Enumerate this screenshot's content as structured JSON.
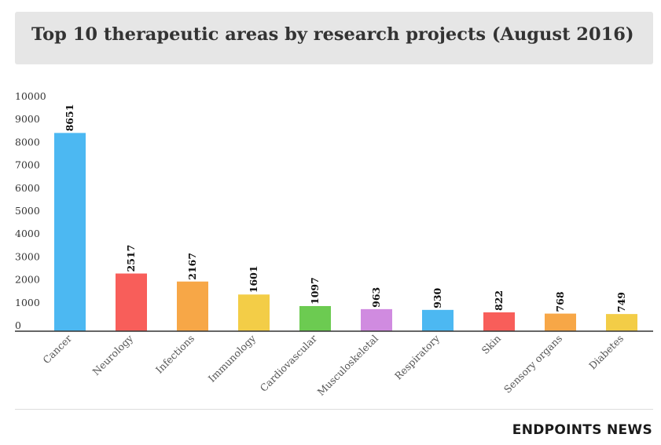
{
  "title": "Top 10 therapeutic areas by research projects (August 2016)",
  "brand": "ENDPOINTS NEWS",
  "chart_data": {
    "type": "bar",
    "title": "Top 10 therapeutic areas by research projects (August 2016)",
    "categories": [
      "Cancer",
      "Neurology",
      "Infections",
      "Immunology",
      "Cardiovascular",
      "Musculoskeletal",
      "Respiratory",
      "Skin",
      "Sensory organs",
      "Diabetes"
    ],
    "values": [
      8651,
      2517,
      2167,
      1601,
      1097,
      963,
      930,
      822,
      768,
      749
    ],
    "colors": [
      "#4cb8f2",
      "#f85e5a",
      "#f7a747",
      "#f3cd47",
      "#6ccb51",
      "#d08be0",
      "#4cb8f2",
      "#f85e5a",
      "#f7a747",
      "#f3cd47"
    ],
    "ylim": [
      0,
      10000
    ],
    "yticks": [
      0,
      1000,
      2000,
      3000,
      4000,
      5000,
      6000,
      7000,
      8000,
      9000,
      10000
    ],
    "xlabel": "",
    "ylabel": "",
    "grid": false,
    "legend": "none"
  }
}
